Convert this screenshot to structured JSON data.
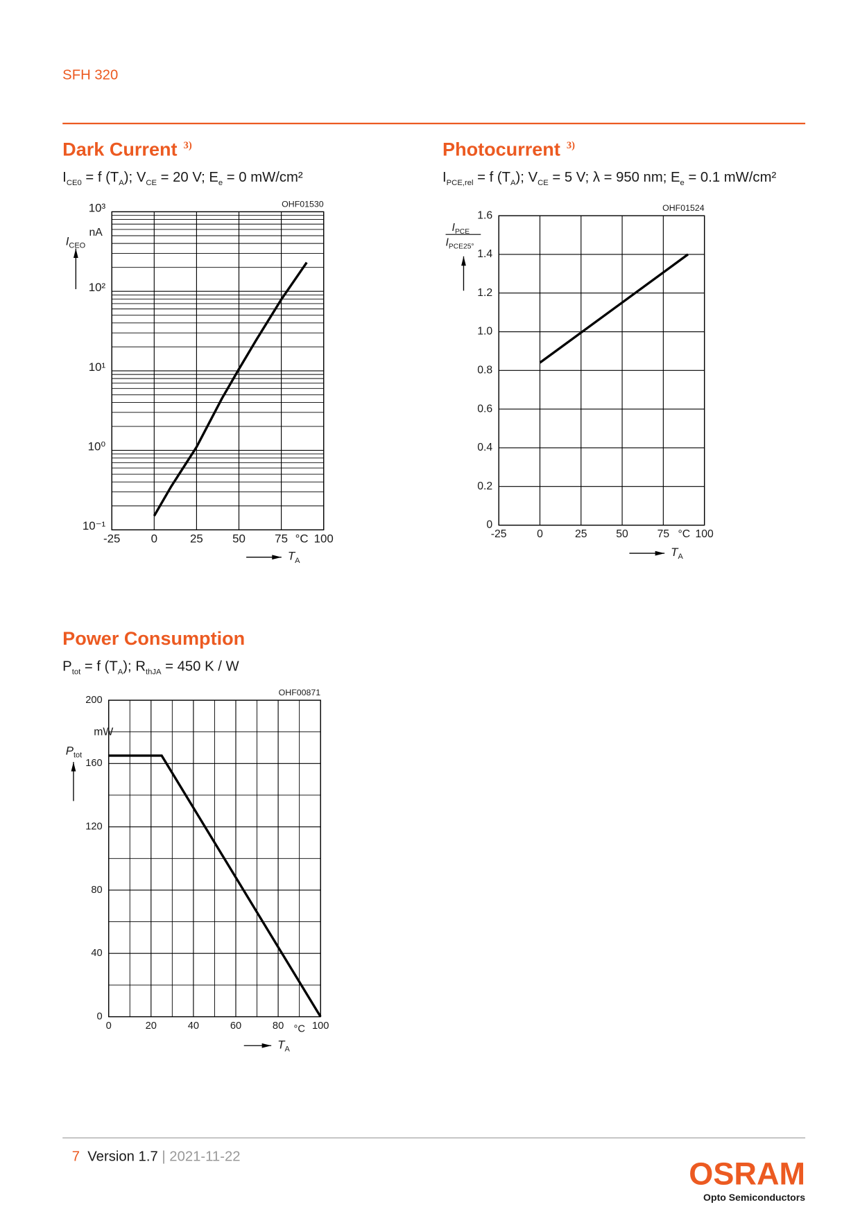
{
  "header": {
    "product": "SFH 320"
  },
  "chart_data": [
    {
      "type": "line",
      "title": "Dark Current",
      "note": "3)",
      "subtitle": [
        "I",
        "CE0",
        " = f (T",
        "A",
        "); V",
        "CE",
        " = 20 V; E",
        "e",
        " = 0 mW/cm²"
      ],
      "code": "OHF01530",
      "y_label": {
        "symbol": "I",
        "subscript": "CEO",
        "unit": "nA"
      },
      "x_label": {
        "symbol": "T",
        "subscript": "A",
        "unit": "°C"
      },
      "log_scale": true,
      "grid": true,
      "color": "#000000",
      "xlim": [
        -25,
        100
      ],
      "xticks": [
        -25,
        0,
        25,
        50,
        75,
        100
      ],
      "ylim": [
        0.1,
        1000
      ],
      "yticks": [
        {
          "value": 0.1,
          "label": "10⁻¹"
        },
        {
          "value": 1,
          "label": "10⁰"
        },
        {
          "value": 10,
          "label": "10¹"
        },
        {
          "value": 100,
          "label": "10²"
        },
        {
          "value": 1000,
          "label": "10³"
        }
      ],
      "x": [
        0,
        10,
        25,
        40,
        50,
        60,
        75,
        90
      ],
      "values": [
        0.15,
        0.35,
        1.1,
        4.5,
        10.5,
        24,
        79,
        230
      ]
    },
    {
      "type": "line",
      "title": "Photocurrent",
      "note": "3)",
      "subtitle": [
        "I",
        "PCE,rel",
        " = f (T",
        "A",
        "); V",
        "CE",
        " = 5 V; λ = 950 nm; E",
        "e",
        " = 0.1 mW/cm²"
      ],
      "code": "OHF01524",
      "y_label": {
        "numerator": {
          "symbol": "I",
          "subscript": "PCE"
        },
        "denominator": {
          "symbol": "I",
          "subscript": "PCE25°"
        }
      },
      "x_label": {
        "symbol": "T",
        "subscript": "A",
        "unit": "°C"
      },
      "log_scale": false,
      "grid": true,
      "color": "#000000",
      "xlim": [
        -25,
        100
      ],
      "xticks": [
        -25,
        0,
        25,
        50,
        75,
        100
      ],
      "ylim": [
        0,
        1.6
      ],
      "yticks": [
        0,
        0.2,
        0.4,
        0.6,
        0.8,
        {
          "value": 1,
          "label": "1.0"
        },
        1.2,
        1.4,
        1.6
      ],
      "x": [
        0,
        90
      ],
      "values": [
        0.84,
        1.4
      ]
    },
    {
      "type": "line",
      "title": "Power Consumption",
      "subtitle": [
        "P",
        "tot",
        " = f (T",
        "A",
        "); R",
        "thJA",
        " = 450 K / W"
      ],
      "code": "OHF00871",
      "y_label": {
        "symbol": "P",
        "subscript": "tot",
        "unit": "mW"
      },
      "x_label": {
        "symbol": "T",
        "subscript": "A",
        "unit": "°C"
      },
      "log_scale": false,
      "grid": true,
      "color": "#000000",
      "xlim": [
        0,
        100
      ],
      "xticks": [
        0,
        20,
        40,
        60,
        80,
        100
      ],
      "ylim": [
        0,
        200
      ],
      "yticks": [
        0,
        40,
        80,
        120,
        160,
        200
      ],
      "x": [
        0,
        25,
        100
      ],
      "values": [
        165,
        165,
        0
      ]
    }
  ],
  "footer": {
    "page": "7",
    "version": "Version 1.7",
    "date": "| 2021-11-22",
    "logo": "OSRAM",
    "division": "Opto Semiconductors"
  }
}
